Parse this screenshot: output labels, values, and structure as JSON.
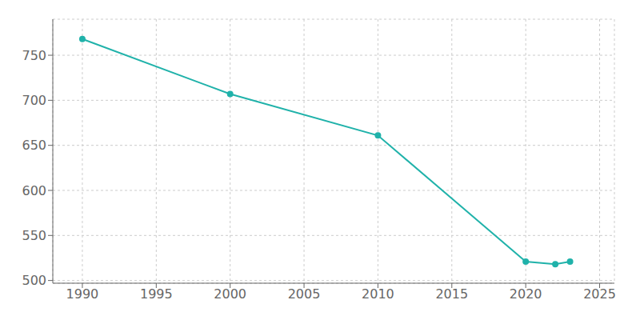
{
  "chart_data": {
    "type": "line",
    "x": [
      1990,
      2000,
      2010,
      2020,
      2022,
      2023
    ],
    "values": [
      768,
      707,
      661,
      521,
      518,
      521
    ],
    "color": "#20B2AA",
    "marker": "circle",
    "xlim": [
      1988,
      2026
    ],
    "ylim": [
      497,
      790
    ],
    "xticks": [
      1990,
      1995,
      2000,
      2005,
      2010,
      2015,
      2020,
      2025
    ],
    "yticks": [
      500,
      550,
      600,
      650,
      700,
      750
    ],
    "grid": true
  }
}
